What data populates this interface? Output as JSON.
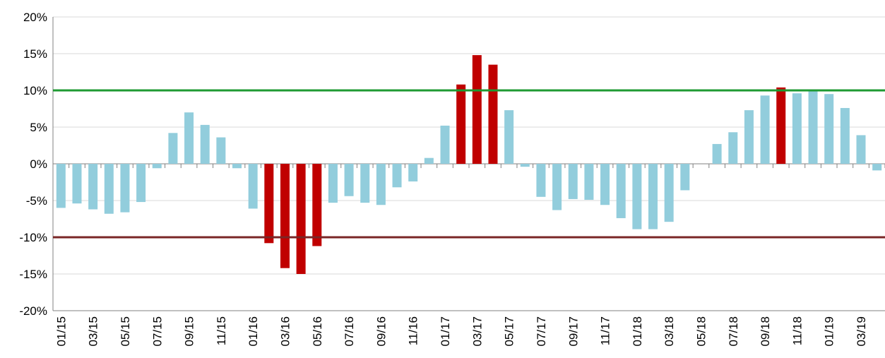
{
  "chart_data": {
    "type": "bar",
    "categories": [
      "01/15",
      null,
      "03/15",
      null,
      "05/15",
      null,
      "07/15",
      null,
      "09/15",
      null,
      "11/15",
      null,
      "01/16",
      null,
      "03/16",
      null,
      "05/16",
      null,
      "07/16",
      null,
      "09/16",
      null,
      "11/16",
      null,
      "01/17",
      null,
      "03/17",
      null,
      "05/17",
      null,
      "07/17",
      null,
      "09/17",
      null,
      "11/17",
      null,
      "01/18",
      null,
      "03/18",
      null,
      "05/18",
      null,
      "07/18",
      null,
      "09/18",
      null,
      "11/18",
      null,
      "01/19",
      null,
      "03/19",
      null
    ],
    "values": [
      -6.0,
      -5.4,
      -6.2,
      -6.8,
      -6.6,
      -5.2,
      -0.6,
      4.2,
      7.0,
      5.3,
      3.6,
      -0.6,
      -6.1,
      -10.8,
      -14.2,
      -15.0,
      -11.2,
      -5.3,
      -4.4,
      -5.3,
      -5.6,
      -3.2,
      -2.4,
      0.8,
      5.2,
      10.8,
      14.8,
      13.5,
      7.3,
      -0.4,
      -4.5,
      -6.3,
      -4.8,
      -4.9,
      -5.6,
      -7.4,
      -8.9,
      -8.9,
      -7.9,
      -3.6,
      0,
      2.7,
      4.3,
      7.3,
      9.3,
      10.4,
      9.6,
      9.9,
      9.5,
      7.6,
      3.9,
      -0.9
    ],
    "color": "#92cddc",
    "highlight_color": "#c00000",
    "thresholds": [
      {
        "value": 10,
        "color": "#1e9a32"
      },
      {
        "value": -10,
        "color": "#7a2626"
      }
    ],
    "ylim": [
      -20,
      20
    ],
    "yticks": [
      {
        "value": -20,
        "label": "-20%"
      },
      {
        "value": -15,
        "label": "-15%"
      },
      {
        "value": -10,
        "label": "-10%"
      },
      {
        "value": -5,
        "label": "-5%"
      },
      {
        "value": 0,
        "label": "0%"
      },
      {
        "value": 5,
        "label": "5%"
      },
      {
        "value": 10,
        "label": "10%"
      },
      {
        "value": 15,
        "label": "15%"
      },
      {
        "value": 20,
        "label": "20%"
      }
    ],
    "grid": true
  }
}
